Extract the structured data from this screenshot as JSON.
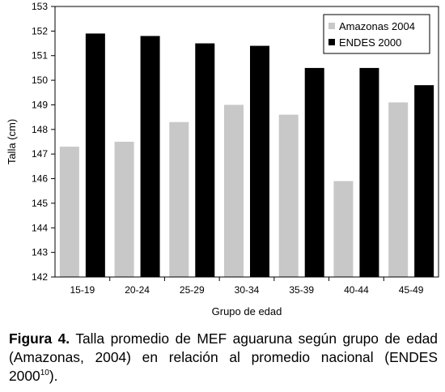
{
  "chart_data": {
    "type": "bar",
    "categories": [
      "15-19",
      "20-24",
      "25-29",
      "30-34",
      "35-39",
      "40-44",
      "45-49"
    ],
    "series": [
      {
        "name": "Amazonas 2004",
        "color": "#c8c8c8",
        "values": [
          147.3,
          147.5,
          148.3,
          149.0,
          148.6,
          145.9,
          149.1
        ]
      },
      {
        "name": "ENDES 2000",
        "color": "#000000",
        "values": [
          151.9,
          151.8,
          151.5,
          151.4,
          150.5,
          150.5,
          149.8
        ]
      }
    ],
    "xlabel": "Grupo de edad",
    "ylabel": "Talla (cm)",
    "ylim": [
      142,
      153
    ],
    "yticks": [
      142,
      143,
      144,
      145,
      146,
      147,
      148,
      149,
      150,
      151,
      152,
      153
    ],
    "legend_position": "top-right",
    "grid": false
  },
  "caption": {
    "label": "Figura 4.",
    "text": " Talla promedio de MEF aguaruna según grupo de edad (Amazonas, 2004) en relación al promedio nacional (ENDES 2000",
    "superscript": "10",
    "end": ")."
  }
}
